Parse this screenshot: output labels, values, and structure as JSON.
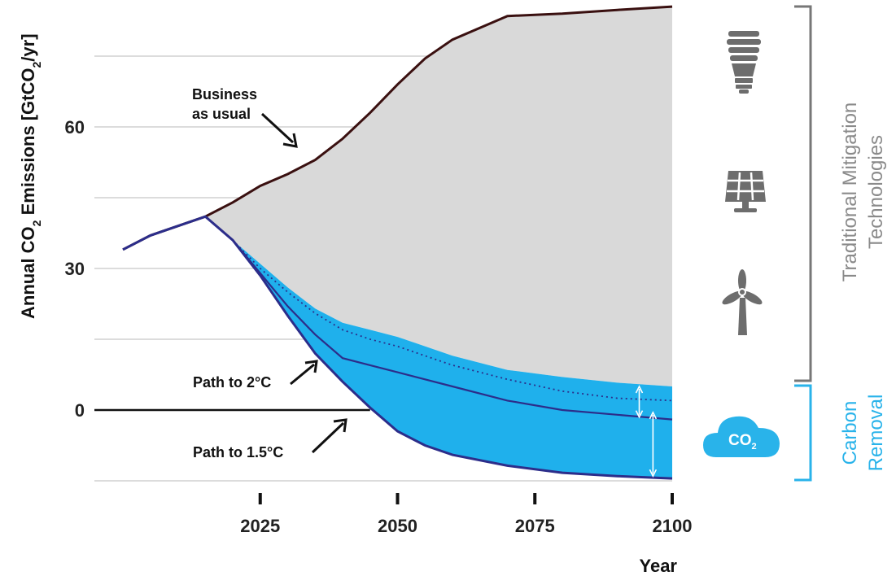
{
  "chart_data": {
    "type": "area",
    "xlabel": "Year",
    "ylabel_parts": {
      "a": "Annual CO",
      "b": "2",
      "c": " Emissions [GtCO",
      "d": "2",
      "e": "/yr]"
    },
    "xlim": [
      1995,
      2100
    ],
    "ylim": [
      -15,
      86
    ],
    "x_ticks": [
      2025,
      2050,
      2075,
      2100
    ],
    "y_ticks": [
      0,
      30,
      60
    ],
    "grid": true,
    "series": [
      {
        "name": "Business as usual",
        "x": [
          2000,
          2005,
          2010,
          2015,
          2020,
          2025,
          2030,
          2035,
          2040,
          2045,
          2050,
          2055,
          2060,
          2070,
          2080,
          2090,
          2100
        ],
        "y": [
          34,
          37,
          39,
          41,
          44,
          47.5,
          50,
          53,
          57.5,
          63,
          69,
          74.5,
          78.5,
          83.5,
          84,
          84.8,
          85.5
        ]
      },
      {
        "name": "Path to 2°C",
        "x": [
          2000,
          2005,
          2010,
          2015,
          2020,
          2025,
          2030,
          2035,
          2040,
          2045,
          2050,
          2060,
          2070,
          2080,
          2090,
          2100
        ],
        "y": [
          34,
          37,
          39,
          41,
          36,
          29,
          22,
          16,
          11,
          9.5,
          8,
          5,
          2,
          0,
          -1,
          -2
        ]
      },
      {
        "name": "Path to 1.5°C",
        "x": [
          2000,
          2005,
          2010,
          2015,
          2020,
          2025,
          2030,
          2035,
          2040,
          2045,
          2050,
          2055,
          2060,
          2070,
          2080,
          2090,
          2100
        ],
        "y": [
          34,
          37,
          39,
          41,
          36,
          28.5,
          20,
          12,
          6,
          0.5,
          -4.5,
          -7.5,
          -9.5,
          -11.8,
          -13.3,
          -14,
          -14.5
        ]
      },
      {
        "name": "",
        "style": "dotted",
        "x": [
          2020,
          2025,
          2030,
          2035,
          2040,
          2045,
          2050,
          2060,
          2070,
          2080,
          2090,
          2100
        ],
        "y": [
          36,
          30,
          25,
          20.5,
          17,
          15,
          13.5,
          9.5,
          6.5,
          4,
          2.5,
          2
        ]
      },
      {
        "name": "",
        "style": "band_top",
        "x": [
          2020,
          2025,
          2030,
          2035,
          2040,
          2045,
          2050,
          2060,
          2070,
          2080,
          2090,
          2100
        ],
        "y": [
          36,
          31,
          26,
          21.5,
          18.5,
          17,
          15.5,
          11.5,
          8.5,
          7,
          5.8,
          5
        ]
      }
    ],
    "annotations": {
      "bau_line1": "Business",
      "bau_line2": "as usual",
      "path2": "Path to 2°C",
      "path15": "Path to 1.5°C"
    },
    "side_labels": {
      "mitigation_line1": "Traditional Mitigation",
      "mitigation_line2": "Technologies",
      "removal_line1": "Carbon",
      "removal_line2": "Removal",
      "co2_main": "CO",
      "co2_sub": "2"
    },
    "colors": {
      "grey_area": "#d9d9d9",
      "blue_area": "#1fb0ec",
      "bau_line": "#3a1010",
      "path_line": "#2c2d8a",
      "grid": "#c8c8c8",
      "bracket_grey": "#777777",
      "bracket_blue": "#29b3ea",
      "icon_grey": "#6d6d6d"
    },
    "icons": [
      "light-bulb-icon",
      "solar-panel-icon",
      "wind-turbine-icon",
      "co2-cloud-icon"
    ]
  }
}
